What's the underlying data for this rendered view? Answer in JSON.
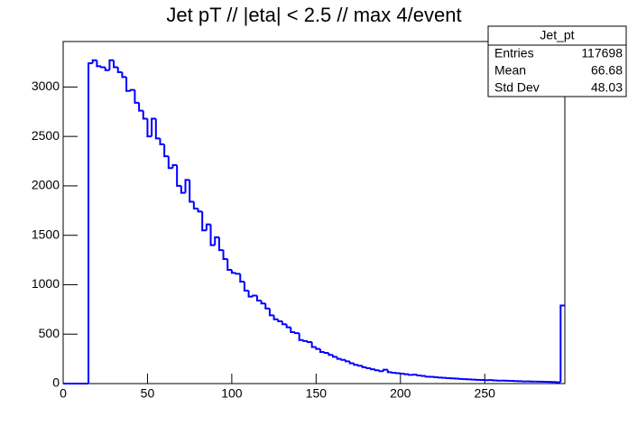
{
  "chart_data": {
    "type": "histogram",
    "title": "Jet pT // |eta| < 2.5 // max 4/event",
    "color": "#0000ff",
    "bins": [
      0,
      2.5,
      5,
      7.5,
      10,
      12.5,
      15,
      17.5,
      20,
      22.5,
      25,
      27.5,
      30,
      32.5,
      35,
      37.5,
      40,
      42.5,
      45,
      47.5,
      50,
      52.5,
      55,
      57.5,
      60,
      62.5,
      65,
      67.5,
      70,
      72.5,
      75,
      77.5,
      80,
      82.5,
      85,
      87.5,
      90,
      92.5,
      95,
      97.5,
      100,
      102.5,
      105,
      107.5,
      110,
      112.5,
      115,
      117.5,
      120,
      122.5,
      125,
      127.5,
      130,
      132.5,
      135,
      137.5,
      140,
      142.5,
      145,
      147.5,
      150,
      152.5,
      155,
      157.5,
      160,
      162.5,
      165,
      167.5,
      170,
      172.5,
      175,
      177.5,
      180,
      182.5,
      185,
      187.5,
      190,
      192.5,
      195,
      197.5,
      200,
      202.5,
      205,
      207.5,
      210,
      212.5,
      215,
      217.5,
      220,
      222.5,
      225,
      227.5,
      230,
      232.5,
      235,
      237.5,
      240,
      242.5,
      245,
      247.5,
      250,
      252.5,
      255,
      257.5,
      260,
      262.5,
      265,
      267.5,
      270,
      272.5,
      275,
      277.5,
      280,
      282.5,
      285,
      287.5,
      290,
      292.5,
      295,
      297.5
    ],
    "values": [
      0,
      0,
      0,
      0,
      0,
      0,
      3240,
      3270,
      3210,
      3200,
      3170,
      3270,
      3200,
      3150,
      3100,
      2960,
      2970,
      2840,
      2760,
      2680,
      2500,
      2680,
      2480,
      2420,
      2300,
      2180,
      2210,
      2000,
      1930,
      2060,
      1840,
      1770,
      1740,
      1550,
      1610,
      1400,
      1480,
      1350,
      1260,
      1150,
      1120,
      1110,
      1030,
      940,
      880,
      890,
      840,
      810,
      760,
      690,
      650,
      630,
      600,
      570,
      520,
      510,
      440,
      430,
      420,
      370,
      350,
      320,
      310,
      290,
      270,
      250,
      240,
      225,
      205,
      190,
      180,
      165,
      155,
      145,
      135,
      125,
      140,
      115,
      110,
      105,
      100,
      95,
      88,
      90,
      82,
      78,
      70,
      68,
      65,
      60,
      58,
      55,
      52,
      50,
      47,
      45,
      42,
      40,
      38,
      36,
      34,
      35,
      32,
      30,
      30,
      28,
      27,
      25,
      24,
      22,
      22,
      20,
      20,
      19,
      18,
      17,
      16,
      14,
      790
    ],
    "xlim": [
      0,
      297.5
    ],
    "ylim": [
      0,
      3460
    ],
    "xticks": [
      0,
      50,
      100,
      150,
      200,
      250
    ],
    "yticks": [
      0,
      500,
      1000,
      1500,
      2000,
      2500,
      3000
    ],
    "stats": {
      "title": "Jet_pt",
      "rows": [
        [
          "Entries",
          117698
        ],
        [
          "Mean",
          66.68
        ],
        [
          "Std Dev",
          48.03
        ]
      ]
    }
  }
}
